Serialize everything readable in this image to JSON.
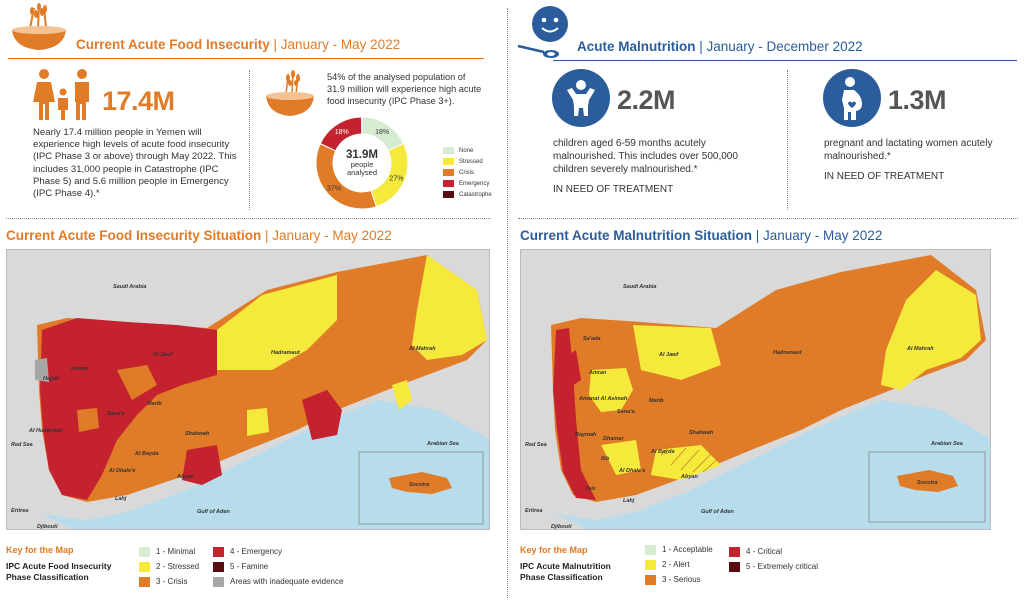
{
  "colors": {
    "orange": "#e07b27",
    "blue": "#2b5d9c",
    "minimal": "#d6ecd0",
    "stressed": "#f5e93b",
    "crisis": "#e07b27",
    "emergency": "#c4222e",
    "famine": "#5a0b12",
    "inadequate": "#a6a6a6",
    "sea": "#b7dcec",
    "land": "#d9d9d9"
  },
  "food": {
    "header_main": "Current Acute Food Insecurity",
    "header_sep": " | ",
    "header_period": "January - May 2022",
    "icon": "grain-bowl-icon",
    "people_icon": "family-icon",
    "stat": "17.4M",
    "paragraph": "Nearly 17.4 million people in Yemen will experience high levels of acute food insecurity (IPC Phase 3 or above) through May 2022. This includes 31,000 people in Catastrophe (IPC Phase 5) and 5.6 million people in Emergency (IPC Phase 4).*",
    "donut_text": "54% of the analysed population of 31.9 million will experience high acute food insecurity (IPC Phase 3+).",
    "donut_center_value": "31.9M",
    "donut_center_line1": "people",
    "donut_center_line2": "analysed",
    "donut_legend": [
      "None",
      "Stressed",
      "Crisis",
      "Emergency",
      "Catastrophe"
    ]
  },
  "chart_data": {
    "type": "pie",
    "title": "",
    "labels": [
      "None",
      "Stressed",
      "Crisis",
      "Emergency",
      "Catastrophe"
    ],
    "values": [
      18,
      27,
      37,
      18,
      0.1
    ],
    "data_labels": [
      "18%",
      "27%",
      "37%",
      "18%",
      ""
    ],
    "colors": [
      "#d6ecd0",
      "#f5e93b",
      "#e07b27",
      "#c4222e",
      "#5a0b12"
    ]
  },
  "nutrition": {
    "header_main": "Acute Malnutrition",
    "header_sep": " | ",
    "header_period": "January - December 2022",
    "icon": "child-face-spoon-icon",
    "children_icon": "child-icon",
    "women_icon": "pregnant-woman-icon",
    "children_stat": "2.2M",
    "children_text": "children aged 6-59 months acutely malnourished. This includes over 500,000 children severely malnourished.*",
    "children_need": "IN NEED OF TREATMENT",
    "women_stat": "1.3M",
    "women_text": "pregnant and lactating women acutely malnourished.*",
    "women_need": "IN NEED OF TREATMENT"
  },
  "map_food": {
    "header_main": "Current Acute Food Insecurity Situation",
    "header_sep": " | ",
    "header_period": "January - May 2022",
    "labels": {
      "saudi": "Saudi Arabia",
      "jawf": "Al Jawf",
      "hadramaut": "Hadramaut",
      "mahrah": "Al Mahrah",
      "marib": "Marib",
      "shabwah": "Shabwah",
      "hudaydah": "Al Hudaydah",
      "hajjah": "Hajjah",
      "sanaa": "Sana'a",
      "amran": "Amran",
      "redsea": "Red Sea",
      "arabiansea": "Arabian Sea",
      "gulf": "Gulf of Aden",
      "socotra": "Socotra",
      "abyan": "Abyan",
      "lahj": "Lahj",
      "dhale": "Al Dhale'e",
      "bayda": "Al Bayda",
      "eritrea": "Eritrea",
      "djibouti": "Djibouti"
    },
    "key_title": "Key for the Map",
    "key_sub1": "IPC Acute Food Insecurity",
    "key_sub2": "Phase Classification",
    "key_items": [
      "1 - Minimal",
      "2 - Stressed",
      "3 - Crisis",
      "4 - Emergency",
      "5 - Famine",
      "Areas with inadequate evidence"
    ]
  },
  "map_nutrition": {
    "header_main": "Current Acute Malnutrition Situation",
    "header_sep": " | ",
    "header_period": "January - May 2022",
    "labels": {
      "saudi": "Saudi Arabia",
      "saada": "Sa'ada",
      "jawf": "Al Jawf",
      "hadramaut": "Hadramaut",
      "mahrah": "Al Mahrah",
      "amran": "Amran",
      "amanat": "Amanat Al Asimah",
      "sanaa": "Sana'a",
      "marib": "Marib",
      "shabwah": "Shabwah",
      "dhamar": "Dhamar",
      "ibb": "Ibb",
      "bayda": "Al Bayda",
      "dhale": "Al Dhale'e",
      "abyan": "Abyan",
      "lahj": "Lahj",
      "taiz": "Taiz",
      "raymah": "Raymah",
      "redsea": "Red Sea",
      "arabiansea": "Arabian Sea",
      "gulf": "Gulf of Aden",
      "socotra": "Socotra",
      "eritrea": "Eritrea",
      "djibouti": "Djibouti"
    },
    "key_title": "Key for the Map",
    "key_sub1": "IPC Acute Malnutrition",
    "key_sub2": "Phase Classification",
    "key_items": [
      "1 - Acceptable",
      "2 - Alert",
      "3 - Serious",
      "4 - Critical",
      "5 - Extremely critical"
    ]
  }
}
